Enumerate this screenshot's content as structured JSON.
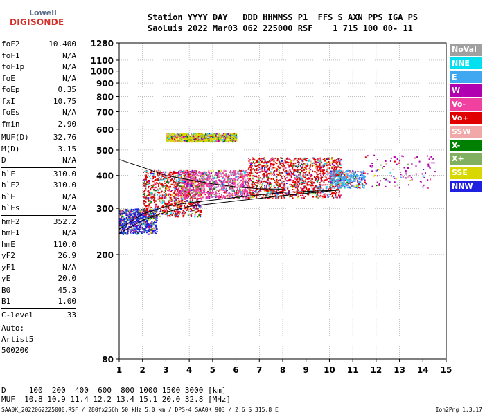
{
  "logo": {
    "line1": "Lowell",
    "line2": "DIGISONDE"
  },
  "header": {
    "line1": "Station YYYY DAY   DDD HHMMSS P1  FFS S AXN PPS IGA PS",
    "line2": "SaoLuis 2022 Mar03 062 225000 RSF    1 715 100 00- 11"
  },
  "scalars": [
    {
      "group": 1,
      "name": "foF2",
      "value": "10.400"
    },
    {
      "group": 1,
      "name": "foF1",
      "value": "N/A"
    },
    {
      "group": 1,
      "name": "foF1p",
      "value": "N/A"
    },
    {
      "group": 1,
      "name": "foE",
      "value": "N/A"
    },
    {
      "group": 1,
      "name": "foEp",
      "value": "0.35"
    },
    {
      "group": 1,
      "name": "fxI",
      "value": "10.75"
    },
    {
      "group": 1,
      "name": "foEs",
      "value": "N/A"
    },
    {
      "group": 1,
      "name": "fmin",
      "value": "2.90"
    },
    {
      "group": 2,
      "name": "MUF(D)",
      "value": "32.76"
    },
    {
      "group": 2,
      "name": "M(D)",
      "value": "3.15"
    },
    {
      "group": 2,
      "name": "D",
      "value": "N/A"
    },
    {
      "group": 3,
      "name": "h`F",
      "value": "310.0"
    },
    {
      "group": 3,
      "name": "h`F2",
      "value": "310.0"
    },
    {
      "group": 3,
      "name": "h`E",
      "value": "N/A"
    },
    {
      "group": 3,
      "name": "h`Es",
      "value": "N/A"
    },
    {
      "group": 4,
      "name": "hmF2",
      "value": "352.2"
    },
    {
      "group": 4,
      "name": "hmF1",
      "value": "N/A"
    },
    {
      "group": 4,
      "name": "hmE",
      "value": "110.0"
    },
    {
      "group": 4,
      "name": "yF2",
      "value": "26.9"
    },
    {
      "group": 4,
      "name": "yF1",
      "value": "N/A"
    },
    {
      "group": 4,
      "name": "yE",
      "value": "20.0"
    },
    {
      "group": 4,
      "name": "B0",
      "value": "45.3"
    },
    {
      "group": 4,
      "name": "B1",
      "value": "1.00"
    },
    {
      "group": 5,
      "name": "C-level",
      "value": "33"
    }
  ],
  "autoscale": {
    "line1": "Auto:",
    "line2": "Artist5",
    "line3": "500200"
  },
  "legend": [
    {
      "label": "NoVal",
      "color": "#a0a0a0"
    },
    {
      "label": "NNE",
      "color": "#00e0f0"
    },
    {
      "label": "E",
      "color": "#40a8f0"
    },
    {
      "label": "W",
      "color": "#b000b0"
    },
    {
      "label": "Vo-",
      "color": "#f040a0"
    },
    {
      "label": "Vo+",
      "color": "#e00000"
    },
    {
      "label": "SSW",
      "color": "#f0a8a8"
    },
    {
      "label": "X-",
      "color": "#008000"
    },
    {
      "label": "X+",
      "color": "#80b060"
    },
    {
      "label": "SSE",
      "color": "#d8d800"
    },
    {
      "label": "NNW",
      "color": "#2020e0"
    }
  ],
  "muf_table": {
    "line1": "D     100  200  400  600  800 1000 1500 3000 [km]",
    "line2": "MUF  10.8 10.9 11.4 12.2 13.4 15.1 20.0 32.8 [MHz]"
  },
  "footer": {
    "left": "SAA0K_2022062225000.RSF / 280fx256h 50 kHz 5.0 km / DPS-4 SAA0K 903 / 2.6 S 315.8 E",
    "right": "Ion2Png 1.3.17"
  },
  "chart_data": {
    "type": "scatter",
    "title": "",
    "xlabel": "",
    "ylabel": "",
    "x_range": [
      1,
      15
    ],
    "y_range": [
      80,
      1280
    ],
    "y_scale": "log",
    "grid": true,
    "x_ticks": [
      1,
      2,
      3,
      4,
      5,
      6,
      7,
      8,
      9,
      10,
      11,
      12,
      13,
      14,
      15
    ],
    "y_ticks": [
      80,
      200,
      300,
      400,
      500,
      600,
      700,
      800,
      900,
      1000,
      1100,
      1280
    ],
    "echo_clusters": [
      {
        "x_from": 1.0,
        "x_to": 2.6,
        "y_from": 240,
        "y_to": 300,
        "color": "#2020e0",
        "density": 1.0
      },
      {
        "x_from": 2.0,
        "x_to": 4.5,
        "y_from": 280,
        "y_to": 420,
        "color": "#e00000",
        "density": 0.8
      },
      {
        "x_from": 3.5,
        "x_to": 6.5,
        "y_from": 330,
        "y_to": 420,
        "color": "#f040a0",
        "density": 0.7
      },
      {
        "x_from": 6.5,
        "x_to": 10.5,
        "y_from": 330,
        "y_to": 470,
        "color": "#e00000",
        "density": 0.7
      },
      {
        "x_from": 3.0,
        "x_to": 6.0,
        "y_from": 540,
        "y_to": 580,
        "color": "#d8d800",
        "density": 0.6
      },
      {
        "x_from": 10.0,
        "x_to": 11.5,
        "y_from": 360,
        "y_to": 420,
        "color": "#40a8f0",
        "density": 0.5
      },
      {
        "x_from": 11.5,
        "x_to": 14.5,
        "y_from": 360,
        "y_to": 480,
        "color": "#b000b0",
        "density": 0.08
      }
    ],
    "profile_lines": [
      {
        "name": "",
        "points": [
          [
            1.0,
            240
          ],
          [
            2.0,
            270
          ],
          [
            3.0,
            290
          ],
          [
            4.0,
            305
          ],
          [
            6.0,
            320
          ],
          [
            8.0,
            335
          ],
          [
            10.4,
            352
          ]
        ]
      },
      {
        "name": "",
        "points": [
          [
            1.0,
            250
          ],
          [
            2.0,
            285
          ],
          [
            3.0,
            305
          ],
          [
            4.0,
            315
          ],
          [
            6.0,
            330
          ],
          [
            8.0,
            345
          ],
          [
            10.4,
            352
          ]
        ]
      },
      {
        "name": "",
        "points": [
          [
            1.0,
            460
          ],
          [
            2.0,
            430
          ],
          [
            3.0,
            400
          ],
          [
            4.0,
            385
          ],
          [
            5.0,
            372
          ],
          [
            6.0,
            362
          ],
          [
            7.0,
            356
          ],
          [
            8.0,
            355
          ]
        ]
      }
    ]
  }
}
